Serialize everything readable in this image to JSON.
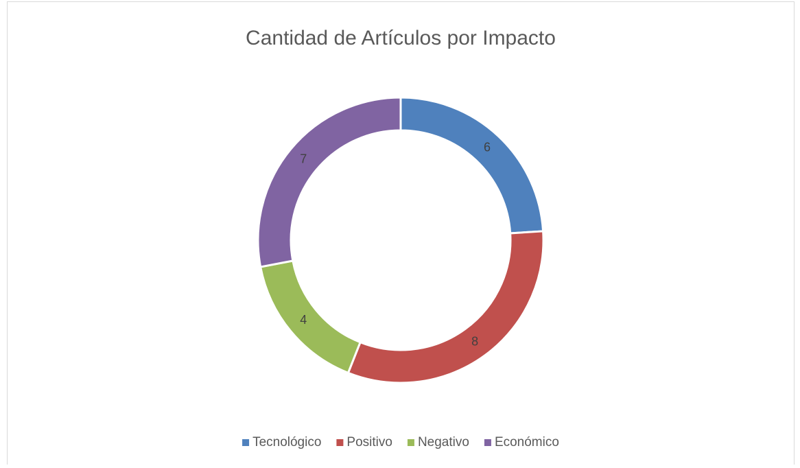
{
  "chart_data": {
    "type": "doughnut",
    "title": "Cantidad de Artículos por Impacto",
    "categories": [
      "Tecnológico",
      "Positivo",
      "Negativo",
      "Económico"
    ],
    "values": [
      6,
      8,
      4,
      7
    ],
    "colors": [
      "#4f81bd",
      "#c0504d",
      "#9bbb59",
      "#8064a2"
    ],
    "legend": "bottom"
  }
}
